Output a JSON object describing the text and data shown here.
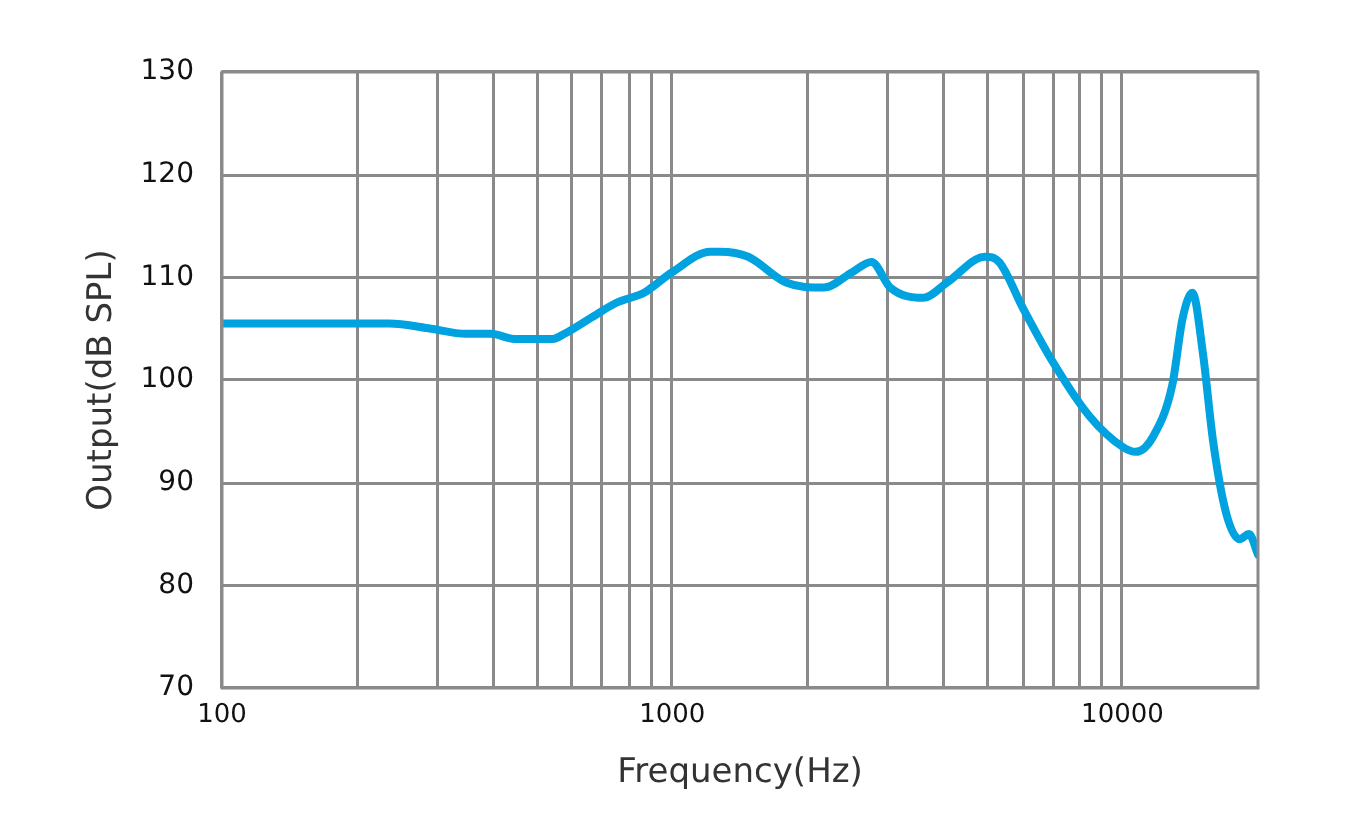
{
  "chart_data": {
    "type": "line",
    "xlabel": "Frequency(Hz)",
    "ylabel": "Output(dB SPL)",
    "x": [
      100,
      126,
      171,
      235,
      291,
      347,
      395,
      447,
      498,
      543,
      576,
      657,
      750,
      866,
      900,
      1000,
      1215,
      1275,
      1475,
      1790,
      2170,
      2510,
      2770,
      3050,
      3610,
      4080,
      4950,
      5320,
      6010,
      6950,
      8440,
      10000,
      10700,
      11700,
      12900,
      13600,
      14300,
      15100,
      15900,
      17000,
      18200,
      19100,
      20000
    ],
    "values": [
      105.5,
      105.5,
      105.5,
      105.5,
      105,
      104.5,
      104.5,
      104,
      104,
      104,
      104.5,
      106,
      107.5,
      108.5,
      109,
      110.5,
      112.5,
      112.5,
      112,
      109.5,
      109,
      110.5,
      111.5,
      109,
      108,
      109.5,
      112,
      111.5,
      107,
      102,
      96.5,
      93.5,
      93,
      94.5,
      99.5,
      106,
      108.5,
      102.5,
      94,
      87,
      84.5,
      85,
      83
    ],
    "color": "#00a2e0",
    "log": "x",
    "xlim": [
      100,
      20000
    ],
    "xticks": [
      100,
      {
        "value": 200,
        "label": null
      },
      {
        "value": 300,
        "label": null
      },
      {
        "value": 400,
        "label": null
      },
      {
        "value": 500,
        "label": null
      },
      {
        "value": 600,
        "label": null
      },
      {
        "value": 700,
        "label": null
      },
      {
        "value": 800,
        "label": null
      },
      {
        "value": 900,
        "label": null
      },
      1000,
      {
        "value": 2000,
        "label": null
      },
      {
        "value": 3000,
        "label": null
      },
      {
        "value": 4000,
        "label": null
      },
      {
        "value": 5000,
        "label": null
      },
      {
        "value": 6000,
        "label": null
      },
      {
        "value": 7000,
        "label": null
      },
      {
        "value": 8000,
        "label": null
      },
      {
        "value": 9000,
        "label": null
      },
      10000
    ],
    "ylim": [
      70,
      130
    ],
    "yticks": [
      70,
      80,
      90,
      100,
      110,
      120,
      130
    ],
    "grid": true,
    "legend": false,
    "marker": "none",
    "line_style": "solid"
  }
}
